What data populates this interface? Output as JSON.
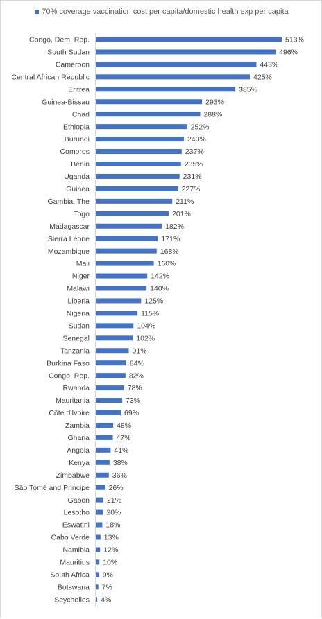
{
  "chart_data": {
    "type": "bar",
    "orientation": "horizontal",
    "title": "",
    "xlabel": "",
    "ylabel": "",
    "legend_position": "top",
    "grid": false,
    "xlim": [
      0,
      513
    ],
    "series": [
      {
        "name": "70% coverage vaccination cost per capita/domestic health exp per capita",
        "color": "#4472c4",
        "values": [
          513,
          496,
          443,
          425,
          385,
          293,
          288,
          252,
          243,
          237,
          235,
          231,
          227,
          211,
          201,
          182,
          171,
          168,
          160,
          142,
          140,
          125,
          115,
          104,
          102,
          91,
          84,
          82,
          78,
          73,
          69,
          48,
          47,
          41,
          38,
          36,
          26,
          21,
          20,
          18,
          13,
          12,
          10,
          9,
          7,
          4
        ]
      }
    ],
    "categories": [
      "Congo, Dem. Rep.",
      "South Sudan",
      "Cameroon",
      "Central African Republic",
      "Eritrea",
      "Guinea-Bissau",
      "Chad",
      "Ethiopia",
      "Burundi",
      "Comoros",
      "Benin",
      "Uganda",
      "Guinea",
      "Gambia, The",
      "Togo",
      "Madagascar",
      "Sierra Leone",
      "Mozambique",
      "Mali",
      "Niger",
      "Malawi",
      "Liberia",
      "Nigeria",
      "Sudan",
      "Senegal",
      "Tanzania",
      "Burkina Faso",
      "Congo, Rep.",
      "Rwanda",
      "Mauritania",
      "Côte d'Ivoire",
      "Zambia",
      "Ghana",
      "Angola",
      "Kenya",
      "Zimbabwe",
      "São Tomé and Principe",
      "Gabon",
      "Lesotho",
      "Eswatini",
      "Cabo Verde",
      "Namibia",
      "Mauritius",
      "South Africa",
      "Botswana",
      "Seychelles"
    ],
    "value_labels": [
      "513%",
      "496%",
      "443%",
      "425%",
      "385%",
      "293%",
      "288%",
      "252%",
      "243%",
      "237%",
      "235%",
      "231%",
      "227%",
      "211%",
      "201%",
      "182%",
      "171%",
      "168%",
      "160%",
      "142%",
      "140%",
      "125%",
      "115%",
      "104%",
      "102%",
      "91%",
      "84%",
      "82%",
      "78%",
      "73%",
      "69%",
      "48%",
      "47%",
      "41%",
      "38%",
      "36%",
      "26%",
      "21%",
      "20%",
      "18%",
      "13%",
      "12%",
      "10%",
      "9%",
      "7%",
      "4%"
    ]
  }
}
